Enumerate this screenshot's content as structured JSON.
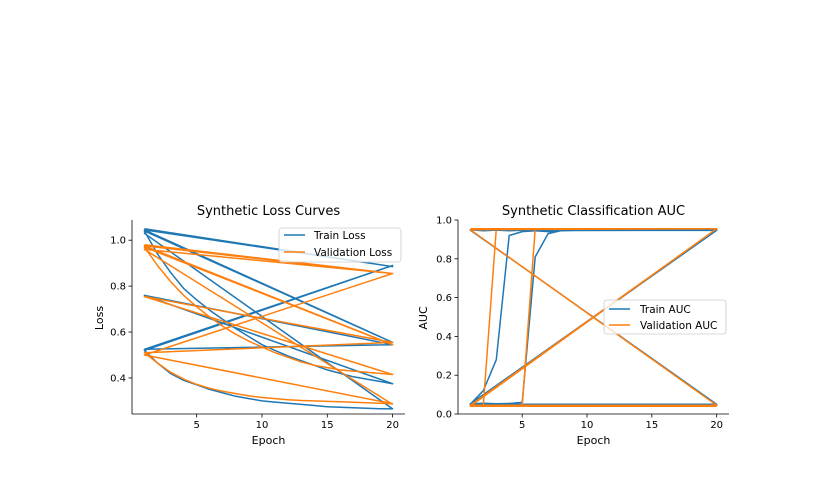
{
  "colors": {
    "train": "#1f77b4",
    "validation": "#ff7f0e",
    "axis": "#000000",
    "legend_border": "#cccccc"
  },
  "chart_data": [
    {
      "type": "line",
      "title": "Synthetic Loss Curves",
      "xlabel": "Epoch",
      "ylabel": "Loss",
      "xlim": [
        0.05,
        20.95
      ],
      "ylim": [
        0.243,
        1.088
      ],
      "xticks": [
        5,
        10,
        15,
        20
      ],
      "yticks": [
        0.4,
        0.6,
        0.8,
        1.0
      ],
      "xtick_labels": [
        "5",
        "10",
        "15",
        "20"
      ],
      "ytick_labels": [
        "0.4",
        "0.6",
        "0.8",
        "1.0"
      ],
      "legend_position": "top-right",
      "grid": false,
      "series": [
        {
          "name": "Train Loss",
          "color_key": "train",
          "points": [
            [
              1,
              1.05
            ],
            [
              20,
              0.885
            ],
            [
              1,
              1.045
            ],
            [
              20,
              0.555
            ],
            [
              1,
              1.04
            ],
            [
              2,
              0.94
            ],
            [
              3,
              0.86
            ],
            [
              4,
              0.79
            ],
            [
              5,
              0.74
            ],
            [
              6,
              0.695
            ],
            [
              7,
              0.655
            ],
            [
              8,
              0.615
            ],
            [
              9,
              0.58
            ],
            [
              10,
              0.545
            ],
            [
              11,
              0.52
            ],
            [
              12,
              0.495
            ],
            [
              13,
              0.475
            ],
            [
              14,
              0.455
            ],
            [
              15,
              0.435
            ],
            [
              16,
              0.42
            ],
            [
              17,
              0.405
            ],
            [
              18,
              0.395
            ],
            [
              19,
              0.385
            ],
            [
              20,
              0.375
            ],
            [
              1,
              0.76
            ],
            [
              20,
              0.545
            ],
            [
              1,
              0.525
            ],
            [
              20,
              0.89
            ],
            [
              1,
              0.52
            ],
            [
              2,
              0.465
            ],
            [
              3,
              0.42
            ],
            [
              4,
              0.39
            ],
            [
              5,
              0.37
            ],
            [
              6,
              0.35
            ],
            [
              7,
              0.335
            ],
            [
              8,
              0.32
            ],
            [
              9,
              0.31
            ],
            [
              10,
              0.3
            ],
            [
              11,
              0.295
            ],
            [
              12,
              0.29
            ],
            [
              13,
              0.285
            ],
            [
              14,
              0.28
            ],
            [
              15,
              0.275
            ],
            [
              16,
              0.272
            ],
            [
              17,
              0.27
            ],
            [
              18,
              0.268
            ],
            [
              19,
              0.266
            ],
            [
              20,
              0.265
            ],
            [
              1,
              1.03
            ],
            [
              20,
              0.265
            ]
          ]
        },
        {
          "name": "Validation Loss",
          "color_key": "validation",
          "points": [
            [
              1,
              0.98
            ],
            [
              20,
              0.855
            ],
            [
              1,
              0.975
            ],
            [
              20,
              0.545
            ],
            [
              1,
              0.97
            ],
            [
              2,
              0.89
            ],
            [
              3,
              0.82
            ],
            [
              4,
              0.76
            ],
            [
              5,
              0.71
            ],
            [
              6,
              0.665
            ],
            [
              7,
              0.625
            ],
            [
              8,
              0.59
            ],
            [
              9,
              0.56
            ],
            [
              10,
              0.535
            ],
            [
              11,
              0.51
            ],
            [
              12,
              0.49
            ],
            [
              13,
              0.47
            ],
            [
              14,
              0.455
            ],
            [
              15,
              0.445
            ],
            [
              16,
              0.435
            ],
            [
              17,
              0.43
            ],
            [
              18,
              0.425
            ],
            [
              19,
              0.42
            ],
            [
              20,
              0.415
            ],
            [
              1,
              0.755
            ],
            [
              20,
              0.555
            ],
            [
              1,
              0.51
            ],
            [
              2,
              0.465
            ],
            [
              3,
              0.425
            ],
            [
              4,
              0.395
            ],
            [
              5,
              0.372
            ],
            [
              6,
              0.355
            ],
            [
              7,
              0.342
            ],
            [
              8,
              0.332
            ],
            [
              9,
              0.322
            ],
            [
              10,
              0.315
            ],
            [
              11,
              0.31
            ],
            [
              12,
              0.305
            ],
            [
              13,
              0.302
            ],
            [
              14,
              0.3
            ],
            [
              15,
              0.298
            ],
            [
              16,
              0.296
            ],
            [
              17,
              0.294
            ],
            [
              18,
              0.292
            ],
            [
              19,
              0.29
            ],
            [
              20,
              0.288
            ],
            [
              1,
              0.5
            ],
            [
              20,
              0.855
            ],
            [
              1,
              0.96
            ],
            [
              20,
              0.285
            ]
          ]
        }
      ]
    },
    {
      "type": "line",
      "title": "Synthetic Classification AUC",
      "xlabel": "Epoch",
      "ylabel": "AUC",
      "xlim": [
        0.05,
        20.95
      ],
      "ylim": [
        0.0,
        1.0
      ],
      "xticks": [
        5,
        10,
        15,
        20
      ],
      "yticks": [
        0.0,
        0.2,
        0.4,
        0.6,
        0.8,
        1.0
      ],
      "xtick_labels": [
        "5",
        "10",
        "15",
        "20"
      ],
      "ytick_labels": [
        "0.0",
        "0.2",
        "0.4",
        "0.6",
        "0.8",
        "1.0"
      ],
      "legend_position": "center-right",
      "grid": false,
      "series": [
        {
          "name": "Train AUC",
          "color_key": "train",
          "points": [
            [
              1,
              0.95
            ],
            [
              2,
              0.945
            ],
            [
              3,
              0.948
            ],
            [
              4,
              0.945
            ],
            [
              5,
              0.947
            ],
            [
              6,
              0.946
            ],
            [
              7,
              0.945
            ],
            [
              8,
              0.948
            ],
            [
              9,
              0.947
            ],
            [
              10,
              0.948
            ],
            [
              11,
              0.946
            ],
            [
              12,
              0.948
            ],
            [
              13,
              0.947
            ],
            [
              14,
              0.949
            ],
            [
              15,
              0.948
            ],
            [
              16,
              0.948
            ],
            [
              17,
              0.947
            ],
            [
              18,
              0.948
            ],
            [
              19,
              0.948
            ],
            [
              20,
              0.95
            ],
            [
              1,
              0.948
            ],
            [
              20,
              0.05
            ],
            [
              1,
              0.05
            ],
            [
              20,
              0.95
            ],
            [
              1,
              0.05
            ],
            [
              2,
              0.12
            ],
            [
              3,
              0.28
            ],
            [
              4,
              0.92
            ],
            [
              5,
              0.94
            ],
            [
              6,
              0.945
            ],
            [
              7,
              0.94
            ],
            [
              8,
              0.945
            ],
            [
              9,
              0.947
            ],
            [
              10,
              0.948
            ],
            [
              20,
              0.95
            ],
            [
              1,
              0.052
            ],
            [
              2,
              0.055
            ],
            [
              3,
              0.053
            ],
            [
              4,
              0.054
            ],
            [
              5,
              0.06
            ],
            [
              6,
              0.81
            ],
            [
              7,
              0.93
            ],
            [
              8,
              0.945
            ],
            [
              9,
              0.946
            ],
            [
              20,
              0.947
            ],
            [
              1,
              0.05
            ],
            [
              2,
              0.048
            ],
            [
              3,
              0.05
            ],
            [
              4,
              0.049
            ],
            [
              5,
              0.05
            ],
            [
              6,
              0.048
            ],
            [
              7,
              0.049
            ],
            [
              8,
              0.05
            ],
            [
              9,
              0.049
            ],
            [
              10,
              0.05
            ],
            [
              11,
              0.048
            ],
            [
              12,
              0.05
            ],
            [
              13,
              0.049
            ],
            [
              14,
              0.048
            ],
            [
              15,
              0.05
            ],
            [
              16,
              0.049
            ],
            [
              17,
              0.048
            ],
            [
              18,
              0.049
            ],
            [
              19,
              0.05
            ],
            [
              20,
              0.05
            ]
          ]
        },
        {
          "name": "Validation AUC",
          "color_key": "validation",
          "points": [
            [
              1,
              0.955
            ],
            [
              20,
              0.955
            ],
            [
              1,
              0.95
            ],
            [
              20,
              0.045
            ],
            [
              1,
              0.045
            ],
            [
              20,
              0.955
            ],
            [
              1,
              0.045
            ],
            [
              2,
              0.045
            ],
            [
              3,
              0.955
            ],
            [
              4,
              0.955
            ],
            [
              5,
              0.955
            ],
            [
              20,
              0.955
            ],
            [
              1,
              0.04
            ],
            [
              2,
              0.04
            ],
            [
              3,
              0.04
            ],
            [
              4,
              0.04
            ],
            [
              5,
              0.04
            ],
            [
              6,
              0.955
            ],
            [
              20,
              0.955
            ],
            [
              1,
              0.04
            ],
            [
              20,
              0.04
            ]
          ]
        }
      ]
    }
  ]
}
